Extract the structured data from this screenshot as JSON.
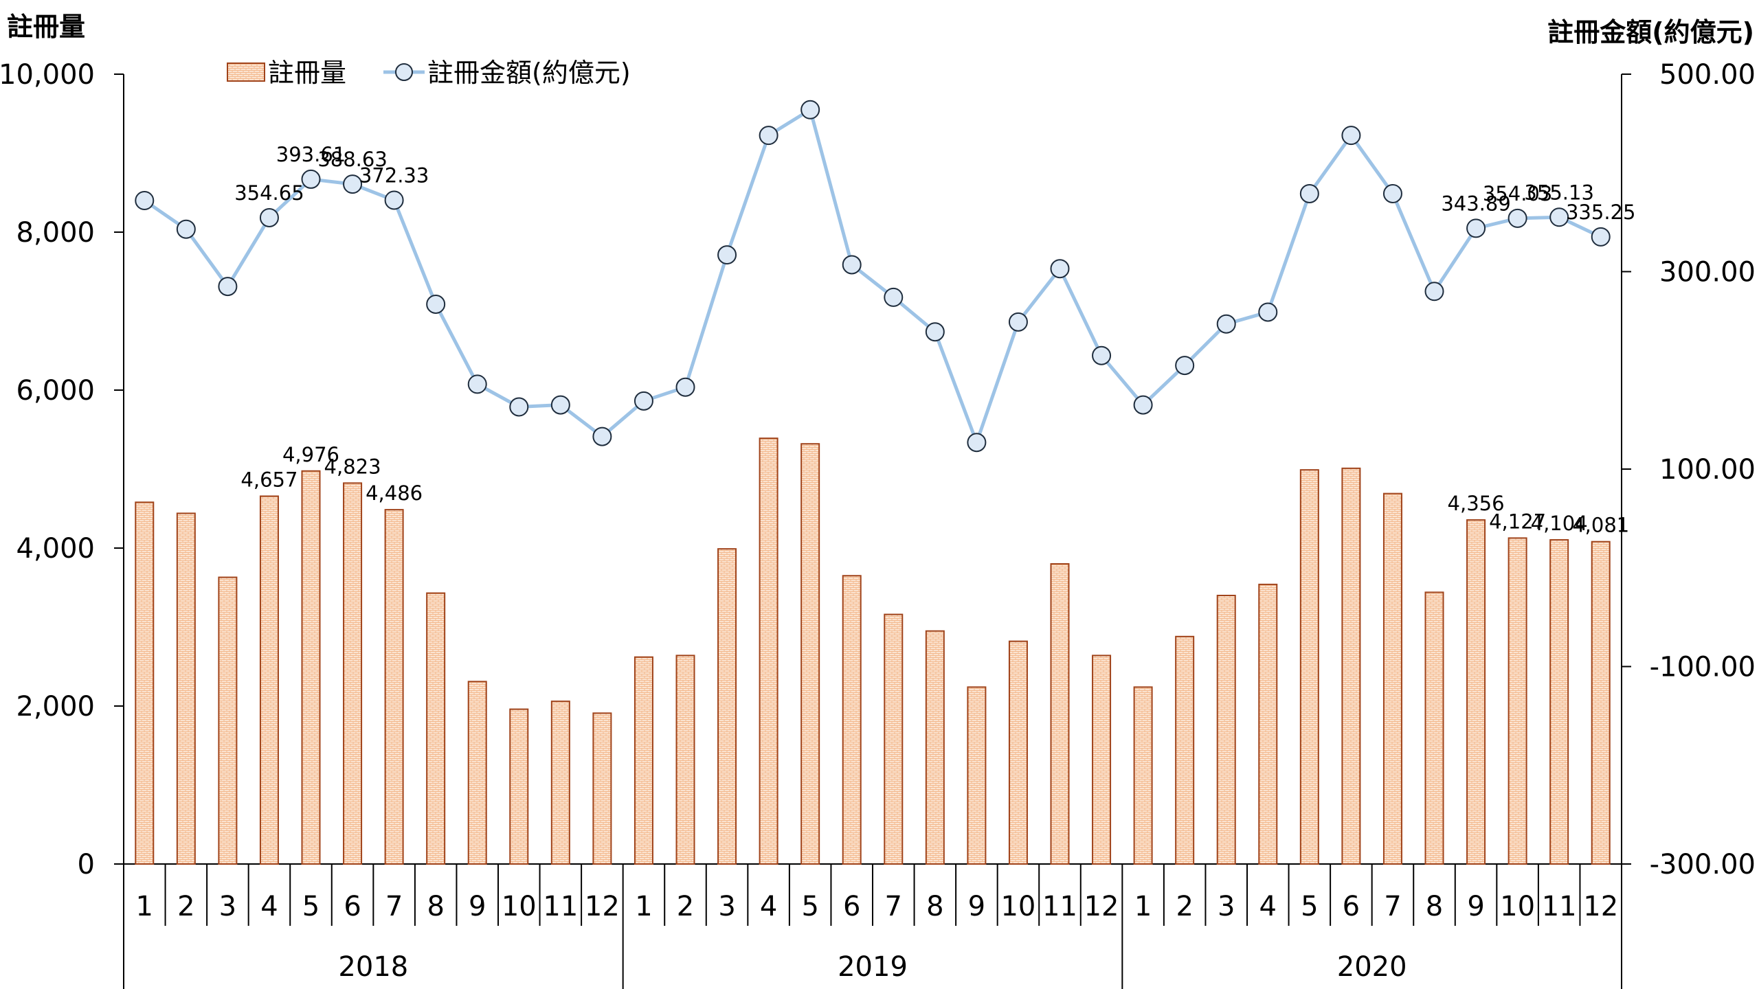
{
  "chart_data": {
    "type": "bar+line",
    "left_axis_title": "註冊量",
    "right_axis_title": "註冊金額(約億元)",
    "legend": {
      "bar": "註冊量",
      "line": "註冊金額(約億元)",
      "placement": "top-left"
    },
    "left_ticks": [
      "0",
      "2,000",
      "4,000",
      "6,000",
      "8,000",
      "10,000"
    ],
    "right_ticks": [
      "-300.00",
      "-100.00",
      "100.00",
      "300.00",
      "500.00"
    ],
    "ylim_left": [
      0,
      10000
    ],
    "ylim_right": [
      -300,
      500
    ],
    "months": [
      "1",
      "2",
      "3",
      "4",
      "5",
      "6",
      "7",
      "8",
      "9",
      "10",
      "11",
      "12"
    ],
    "years": [
      "2018",
      "2019",
      "2020"
    ],
    "series": [
      {
        "name": "註冊量",
        "axis": "left",
        "values": [
          4580,
          4440,
          3630,
          4657,
          4976,
          4823,
          4486,
          3430,
          2310,
          1960,
          2060,
          1910,
          2620,
          2640,
          3990,
          5390,
          5320,
          3650,
          3160,
          2950,
          2240,
          2820,
          3800,
          2640,
          2240,
          2880,
          3400,
          3540,
          4990,
          5010,
          4690,
          3440,
          4356,
          4127,
          4104,
          4081
        ]
      },
      {
        "name": "註冊金額(約億元)",
        "axis": "right",
        "values": [
          372,
          343,
          285,
          354.65,
          393.61,
          388.63,
          372.33,
          267,
          186,
          163,
          165,
          133,
          169,
          183,
          317,
          438,
          464,
          307,
          274,
          239,
          127,
          249,
          303,
          215,
          165,
          205,
          247,
          259,
          379,
          438,
          379,
          280,
          343.89,
          354.03,
          355.13,
          335.25
        ]
      }
    ],
    "bar_labels": [
      {
        "i": 3,
        "text": "4,657"
      },
      {
        "i": 4,
        "text": "4,976"
      },
      {
        "i": 5,
        "text": "4,823"
      },
      {
        "i": 6,
        "text": "4,486"
      },
      {
        "i": 32,
        "text": "4,356"
      },
      {
        "i": 33,
        "text": "4,127"
      },
      {
        "i": 34,
        "text": "4,104"
      },
      {
        "i": 35,
        "text": "4,081"
      }
    ],
    "line_labels": [
      {
        "i": 3,
        "text": "354.65"
      },
      {
        "i": 4,
        "text": "393.61"
      },
      {
        "i": 5,
        "text": "388.63"
      },
      {
        "i": 6,
        "text": "372.33"
      },
      {
        "i": 32,
        "text": "343.89"
      },
      {
        "i": 33,
        "text": "354.03"
      },
      {
        "i": 34,
        "text": "355.13"
      },
      {
        "i": 35,
        "text": "335.25"
      }
    ],
    "grid": false
  }
}
